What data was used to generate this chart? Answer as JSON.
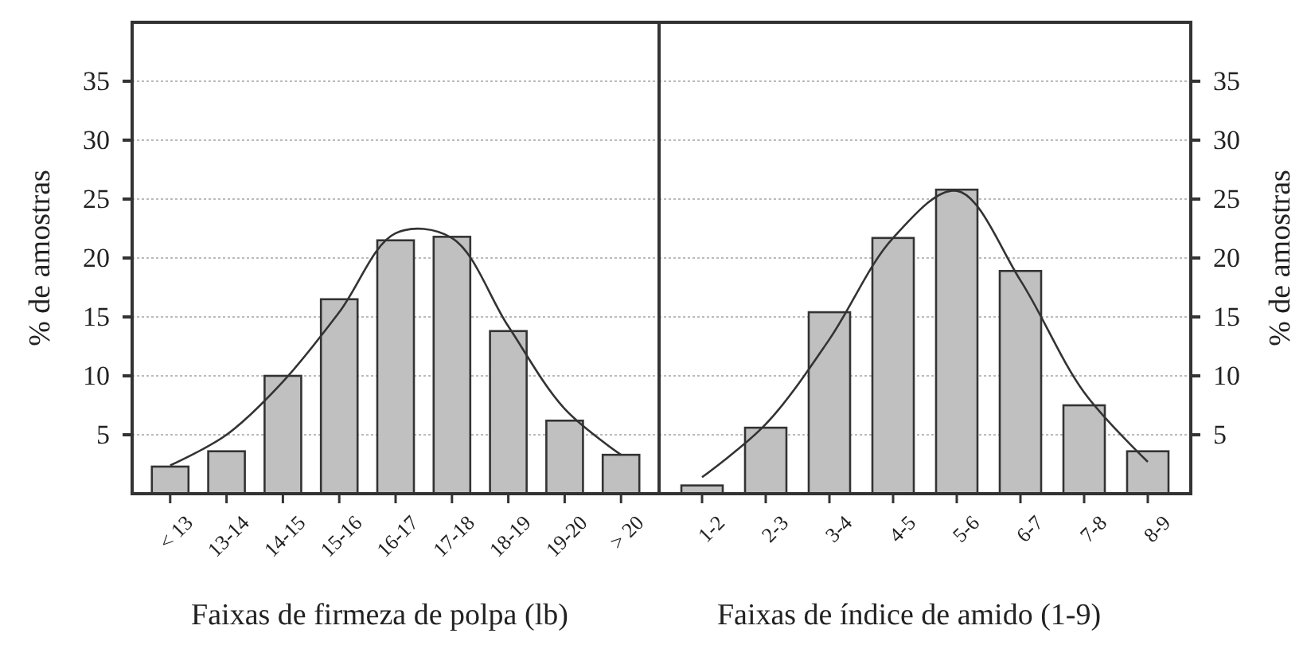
{
  "chart_data": [
    {
      "type": "bar",
      "xlabel": "Faixas de firmeza de polpa (lb)",
      "ylabel": "% de amostras",
      "categories": [
        "< 13",
        "13-14",
        "14-15",
        "15-16",
        "16-17",
        "17-18",
        "18-19",
        "19-20",
        "> 20"
      ],
      "series": [
        {
          "color": "#c0c0c0",
          "values": [
            2.3,
            3.6,
            10,
            16.5,
            21.5,
            21.8,
            13.8,
            6.2,
            3.3
          ]
        },
        {
          "type": "line",
          "color": "#333333",
          "values": [
            2.4,
            5.0,
            9.5,
            15.4,
            22.1,
            21.7,
            14.2,
            7.2,
            3.3
          ]
        }
      ],
      "ylim": [
        0,
        40
      ],
      "yticks": [
        5,
        10,
        15,
        20,
        25,
        30,
        35
      ],
      "grid": "y",
      "marker": "none",
      "line_style": "solid"
    },
    {
      "type": "bar",
      "xlabel": "Faixas de índice de amido (1-9)",
      "y2label": "% de amostras",
      "categories": [
        "1-2",
        "2-3",
        "3-4",
        "4-5",
        "5-6",
        "6-7",
        "7-8",
        "8-9"
      ],
      "series": [
        {
          "axis": "y2",
          "color": "#c0c0c0",
          "values": [
            0.7,
            5.6,
            15.4,
            21.7,
            25.8,
            18.9,
            7.5,
            3.6
          ]
        },
        {
          "type": "line",
          "axis": "y2",
          "color": "#333333",
          "values": [
            1.4,
            5.9,
            13.1,
            21.7,
            25.7,
            18.1,
            8.6,
            2.7
          ]
        }
      ],
      "y2lim": [
        0,
        40
      ],
      "y2ticks": [
        5,
        10,
        15,
        20,
        25,
        30,
        35
      ],
      "grid": "y",
      "marker": "none",
      "line_style": "solid"
    }
  ]
}
